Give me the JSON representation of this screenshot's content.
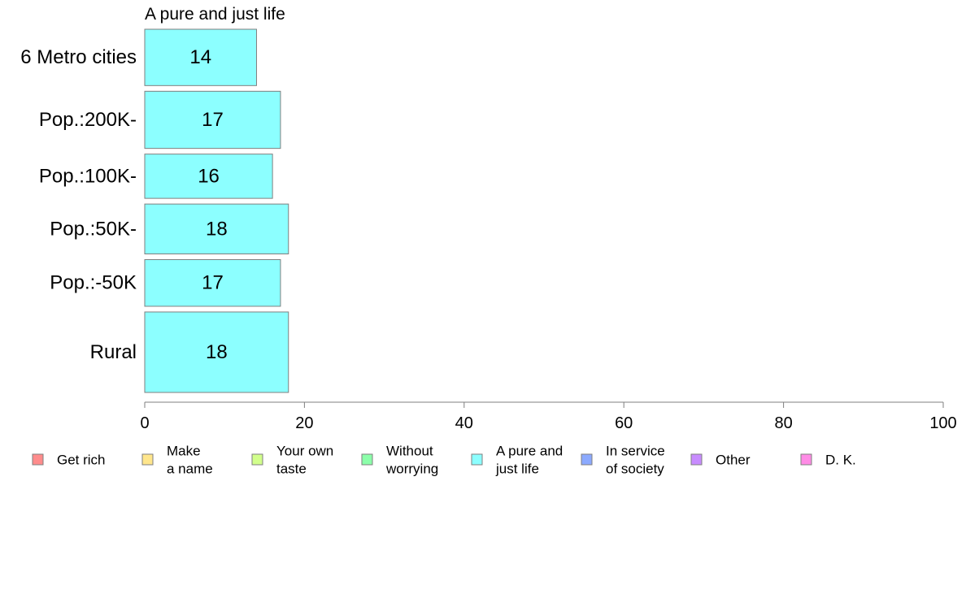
{
  "chart_data": {
    "type": "bar",
    "orientation": "horizontal",
    "title": "A pure and just life",
    "categories": [
      "6 Metro cities",
      "Pop.:200K-",
      "Pop.:100K-",
      "Pop.:50K-",
      "Pop.:-50K",
      "Rural"
    ],
    "relative_widths": [
      0.7,
      0.71,
      0.55,
      0.62,
      0.58,
      1.0
    ],
    "series": [
      {
        "name": "A pure and just life",
        "values": [
          14,
          17,
          16,
          18,
          17,
          18
        ],
        "color": "#8CFFFF"
      }
    ],
    "xlim": [
      0,
      100
    ],
    "xticks": [
      0,
      20,
      40,
      60,
      80,
      100
    ],
    "xlabel": "",
    "ylabel": "",
    "grid": false,
    "legend_position": "bottom",
    "legend": [
      {
        "lines": [
          "Get rich"
        ],
        "color": "#FF8C8C"
      },
      {
        "lines": [
          "Make",
          "a name"
        ],
        "color": "#FFE68C"
      },
      {
        "lines": [
          "Your own",
          "taste"
        ],
        "color": "#D2FF8C"
      },
      {
        "lines": [
          "Without",
          "worrying"
        ],
        "color": "#8CFFAA"
      },
      {
        "lines": [
          "A pure and",
          "just life"
        ],
        "color": "#8CFFFF"
      },
      {
        "lines": [
          "In service",
          "of society"
        ],
        "color": "#8CAAFF"
      },
      {
        "lines": [
          "Other"
        ],
        "color": "#C88CFF"
      },
      {
        "lines": [
          "D. K."
        ],
        "color": "#FF8CE6"
      }
    ]
  }
}
